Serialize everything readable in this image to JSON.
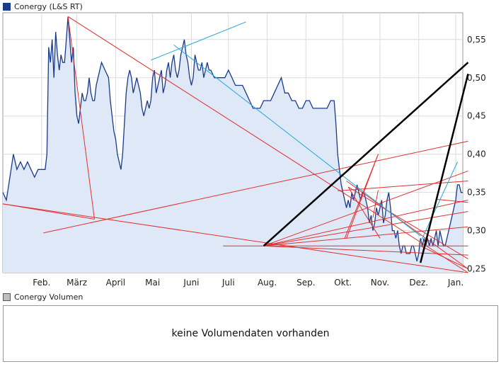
{
  "legend": {
    "price_label": "Conergy (L&S RT)",
    "volume_label": "Conergy Volumen",
    "price_color": "#1a3a8c",
    "volume_color": "#bdbdbd"
  },
  "volume_panel": {
    "message": "keine Volumendaten vorhanden"
  },
  "chart_data": {
    "type": "area",
    "title": "Conergy (L&S RT)",
    "xlabel": "",
    "ylabel": "",
    "ylim": [
      0.245,
      0.585
    ],
    "yticks": [
      0.25,
      0.3,
      0.35,
      0.4,
      0.45,
      0.5,
      0.55
    ],
    "ytick_labels": [
      "0,25",
      "0,30",
      "0,35",
      "0,40",
      "0,45",
      "0,50",
      "0,55"
    ],
    "xlim": [
      0,
      261
    ],
    "x_months": [
      {
        "label": "Feb.",
        "x": 22
      },
      {
        "label": "März",
        "x": 42
      },
      {
        "label": "April",
        "x": 64
      },
      {
        "label": "Mai",
        "x": 85
      },
      {
        "label": "Juni",
        "x": 107
      },
      {
        "label": "Juli",
        "x": 128
      },
      {
        "label": "Aug.",
        "x": 150
      },
      {
        "label": "Sep.",
        "x": 172
      },
      {
        "label": "Okt.",
        "x": 193
      },
      {
        "label": "Nov.",
        "x": 214
      },
      {
        "label": "Dez.",
        "x": 236
      },
      {
        "label": "Jan.",
        "x": 257
      }
    ],
    "grid": true,
    "series": [
      {
        "color": "#1a3a8c",
        "fill": "#dfe8f7",
        "points": [
          [
            0,
            0.35
          ],
          [
            2,
            0.34
          ],
          [
            4,
            0.37
          ],
          [
            6,
            0.4
          ],
          [
            8,
            0.38
          ],
          [
            10,
            0.39
          ],
          [
            12,
            0.38
          ],
          [
            14,
            0.39
          ],
          [
            16,
            0.38
          ],
          [
            18,
            0.37
          ],
          [
            20,
            0.38
          ],
          [
            22,
            0.38
          ],
          [
            24,
            0.38
          ],
          [
            25,
            0.4
          ],
          [
            26,
            0.54
          ],
          [
            27,
            0.52
          ],
          [
            28,
            0.55
          ],
          [
            29,
            0.5
          ],
          [
            30,
            0.56
          ],
          [
            31,
            0.53
          ],
          [
            32,
            0.51
          ],
          [
            33,
            0.53
          ],
          [
            34,
            0.52
          ],
          [
            35,
            0.52
          ],
          [
            36,
            0.55
          ],
          [
            37,
            0.58
          ],
          [
            38,
            0.55
          ],
          [
            39,
            0.52
          ],
          [
            40,
            0.54
          ],
          [
            41,
            0.48
          ],
          [
            42,
            0.45
          ],
          [
            43,
            0.44
          ],
          [
            44,
            0.46
          ],
          [
            45,
            0.48
          ],
          [
            46,
            0.47
          ],
          [
            47,
            0.47
          ],
          [
            48,
            0.48
          ],
          [
            49,
            0.5
          ],
          [
            50,
            0.48
          ],
          [
            51,
            0.47
          ],
          [
            52,
            0.47
          ],
          [
            53,
            0.49
          ],
          [
            54,
            0.5
          ],
          [
            56,
            0.52
          ],
          [
            58,
            0.51
          ],
          [
            60,
            0.5
          ],
          [
            61,
            0.47
          ],
          [
            62,
            0.45
          ],
          [
            63,
            0.43
          ],
          [
            64,
            0.42
          ],
          [
            65,
            0.4
          ],
          [
            66,
            0.39
          ],
          [
            67,
            0.38
          ],
          [
            68,
            0.4
          ],
          [
            69,
            0.44
          ],
          [
            70,
            0.48
          ],
          [
            71,
            0.5
          ],
          [
            72,
            0.51
          ],
          [
            73,
            0.5
          ],
          [
            74,
            0.48
          ],
          [
            75,
            0.49
          ],
          [
            76,
            0.5
          ],
          [
            77,
            0.49
          ],
          [
            78,
            0.48
          ],
          [
            79,
            0.46
          ],
          [
            80,
            0.45
          ],
          [
            81,
            0.46
          ],
          [
            82,
            0.47
          ],
          [
            83,
            0.46
          ],
          [
            84,
            0.47
          ],
          [
            85,
            0.5
          ],
          [
            86,
            0.51
          ],
          [
            87,
            0.48
          ],
          [
            88,
            0.49
          ],
          [
            89,
            0.5
          ],
          [
            90,
            0.51
          ],
          [
            91,
            0.48
          ],
          [
            92,
            0.49
          ],
          [
            93,
            0.51
          ],
          [
            94,
            0.52
          ],
          [
            95,
            0.5
          ],
          [
            96,
            0.52
          ],
          [
            97,
            0.53
          ],
          [
            98,
            0.51
          ],
          [
            99,
            0.5
          ],
          [
            100,
            0.51
          ],
          [
            101,
            0.53
          ],
          [
            102,
            0.54
          ],
          [
            103,
            0.55
          ],
          [
            104,
            0.53
          ],
          [
            105,
            0.52
          ],
          [
            106,
            0.5
          ],
          [
            107,
            0.49
          ],
          [
            108,
            0.5
          ],
          [
            109,
            0.53
          ],
          [
            110,
            0.52
          ],
          [
            111,
            0.51
          ],
          [
            112,
            0.51
          ],
          [
            113,
            0.52
          ],
          [
            114,
            0.5
          ],
          [
            115,
            0.51
          ],
          [
            116,
            0.52
          ],
          [
            117,
            0.51
          ],
          [
            118,
            0.51
          ],
          [
            120,
            0.5
          ],
          [
            122,
            0.5
          ],
          [
            124,
            0.5
          ],
          [
            126,
            0.5
          ],
          [
            128,
            0.51
          ],
          [
            130,
            0.5
          ],
          [
            132,
            0.49
          ],
          [
            134,
            0.49
          ],
          [
            136,
            0.49
          ],
          [
            138,
            0.48
          ],
          [
            140,
            0.47
          ],
          [
            142,
            0.46
          ],
          [
            144,
            0.46
          ],
          [
            146,
            0.46
          ],
          [
            148,
            0.47
          ],
          [
            150,
            0.47
          ],
          [
            152,
            0.47
          ],
          [
            154,
            0.48
          ],
          [
            156,
            0.49
          ],
          [
            158,
            0.5
          ],
          [
            160,
            0.48
          ],
          [
            162,
            0.48
          ],
          [
            164,
            0.47
          ],
          [
            166,
            0.47
          ],
          [
            168,
            0.46
          ],
          [
            170,
            0.46
          ],
          [
            172,
            0.47
          ],
          [
            174,
            0.47
          ],
          [
            176,
            0.46
          ],
          [
            178,
            0.46
          ],
          [
            180,
            0.46
          ],
          [
            182,
            0.46
          ],
          [
            184,
            0.46
          ],
          [
            186,
            0.47
          ],
          [
            188,
            0.47
          ],
          [
            189,
            0.44
          ],
          [
            190,
            0.4
          ],
          [
            191,
            0.38
          ],
          [
            192,
            0.36
          ],
          [
            193,
            0.35
          ],
          [
            194,
            0.34
          ],
          [
            195,
            0.33
          ],
          [
            196,
            0.34
          ],
          [
            197,
            0.33
          ],
          [
            198,
            0.35
          ],
          [
            199,
            0.34
          ],
          [
            200,
            0.35
          ],
          [
            201,
            0.36
          ],
          [
            202,
            0.35
          ],
          [
            203,
            0.34
          ],
          [
            204,
            0.35
          ],
          [
            205,
            0.35
          ],
          [
            206,
            0.34
          ],
          [
            207,
            0.33
          ],
          [
            208,
            0.31
          ],
          [
            209,
            0.32
          ],
          [
            210,
            0.3
          ],
          [
            211,
            0.31
          ],
          [
            212,
            0.33
          ],
          [
            213,
            0.32
          ],
          [
            214,
            0.33
          ],
          [
            215,
            0.34
          ],
          [
            216,
            0.31
          ],
          [
            217,
            0.32
          ],
          [
            218,
            0.34
          ],
          [
            219,
            0.35
          ],
          [
            220,
            0.33
          ],
          [
            221,
            0.3
          ],
          [
            222,
            0.3
          ],
          [
            223,
            0.29
          ],
          [
            224,
            0.3
          ],
          [
            225,
            0.28
          ],
          [
            226,
            0.27
          ],
          [
            227,
            0.28
          ],
          [
            228,
            0.28
          ],
          [
            229,
            0.27
          ],
          [
            230,
            0.27
          ],
          [
            231,
            0.27
          ],
          [
            232,
            0.28
          ],
          [
            233,
            0.28
          ],
          [
            234,
            0.27
          ],
          [
            235,
            0.26
          ],
          [
            236,
            0.27
          ],
          [
            237,
            0.29
          ],
          [
            238,
            0.28
          ],
          [
            239,
            0.29
          ],
          [
            240,
            0.28
          ],
          [
            241,
            0.29
          ],
          [
            242,
            0.28
          ],
          [
            243,
            0.29
          ],
          [
            244,
            0.28
          ],
          [
            245,
            0.29
          ],
          [
            246,
            0.3
          ],
          [
            247,
            0.28
          ],
          [
            248,
            0.3
          ],
          [
            249,
            0.29
          ],
          [
            250,
            0.28
          ],
          [
            251,
            0.28
          ],
          [
            252,
            0.29
          ],
          [
            253,
            0.3
          ],
          [
            254,
            0.31
          ],
          [
            255,
            0.32
          ],
          [
            256,
            0.33
          ],
          [
            257,
            0.34
          ],
          [
            258,
            0.36
          ],
          [
            259,
            0.36
          ],
          [
            260,
            0.35
          ],
          [
            261,
            0.35
          ]
        ]
      }
    ],
    "trendlines": [
      {
        "color": "#e03030",
        "width": 1,
        "x1": 37,
        "y1": 0.58,
        "x2": 264,
        "y2": 0.245
      },
      {
        "color": "#e03030",
        "width": 1,
        "x1": 37,
        "y1": 0.58,
        "x2": 52,
        "y2": 0.315
      },
      {
        "color": "#e03030",
        "width": 1,
        "x1": 0,
        "y1": 0.335,
        "x2": 52,
        "y2": 0.315
      },
      {
        "color": "#e03030",
        "width": 1,
        "x1": 0,
        "y1": 0.335,
        "x2": 264,
        "y2": 0.245
      },
      {
        "color": "#e03030",
        "width": 1,
        "x1": 23,
        "y1": 0.297,
        "x2": 264,
        "y2": 0.417
      },
      {
        "color": "#e03030",
        "width": 1,
        "x1": 125,
        "y1": 0.28,
        "x2": 264,
        "y2": 0.28
      },
      {
        "color": "#e03030",
        "width": 1,
        "x1": 148,
        "y1": 0.28,
        "x2": 264,
        "y2": 0.378
      },
      {
        "color": "#e03030",
        "width": 1,
        "x1": 148,
        "y1": 0.28,
        "x2": 264,
        "y2": 0.34
      },
      {
        "color": "#e03030",
        "width": 1,
        "x1": 148,
        "y1": 0.28,
        "x2": 264,
        "y2": 0.325
      },
      {
        "color": "#e03030",
        "width": 1,
        "x1": 148,
        "y1": 0.28,
        "x2": 264,
        "y2": 0.305
      },
      {
        "color": "#e03030",
        "width": 1,
        "x1": 148,
        "y1": 0.28,
        "x2": 264,
        "y2": 0.268
      },
      {
        "color": "#e03030",
        "width": 1,
        "x1": 195,
        "y1": 0.365,
        "x2": 264,
        "y2": 0.25
      },
      {
        "color": "#e03030",
        "width": 1,
        "x1": 196,
        "y1": 0.357,
        "x2": 264,
        "y2": 0.263
      },
      {
        "color": "#e03030",
        "width": 1,
        "x1": 196,
        "y1": 0.357,
        "x2": 214,
        "y2": 0.29
      },
      {
        "color": "#e03030",
        "width": 1,
        "x1": 214,
        "y1": 0.29,
        "x2": 214,
        "y2": 0.29
      },
      {
        "color": "#e03030",
        "width": 1,
        "x1": 210,
        "y1": 0.317,
        "x2": 213,
        "y2": 0.353
      },
      {
        "color": "#e03030",
        "width": 1,
        "x1": 213,
        "y1": 0.4,
        "x2": 194,
        "y2": 0.29
      },
      {
        "color": "#e03030",
        "width": 1,
        "x1": 237,
        "y1": 0.28,
        "x2": 264,
        "y2": 0.25
      },
      {
        "color": "#e03030",
        "width": 1,
        "x1": 237,
        "y1": 0.258,
        "x2": 240,
        "y2": 0.29
      },
      {
        "color": "#e03030",
        "width": 1,
        "x1": 213,
        "y1": 0.4,
        "x2": 195,
        "y2": 0.29
      },
      {
        "color": "#e03030",
        "width": 1,
        "x1": 246,
        "y1": 0.341,
        "x2": 264,
        "y2": 0.337
      },
      {
        "color": "#e03030",
        "width": 1,
        "x1": 190,
        "y1": 0.352,
        "x2": 264,
        "y2": 0.365
      },
      {
        "color": "#20a8d8",
        "width": 1,
        "x1": 84,
        "y1": 0.523,
        "x2": 138,
        "y2": 0.573
      },
      {
        "color": "#20a8d8",
        "width": 1,
        "x1": 97,
        "y1": 0.543,
        "x2": 237,
        "y2": 0.293
      },
      {
        "color": "#20a8d8",
        "width": 1,
        "x1": 237,
        "y1": 0.285,
        "x2": 258,
        "y2": 0.39
      },
      {
        "color": "#000000",
        "width": 2.5,
        "x1": 148,
        "y1": 0.28,
        "x2": 264,
        "y2": 0.52
      },
      {
        "color": "#000000",
        "width": 2.5,
        "x1": 237,
        "y1": 0.258,
        "x2": 264,
        "y2": 0.505
      }
    ]
  }
}
